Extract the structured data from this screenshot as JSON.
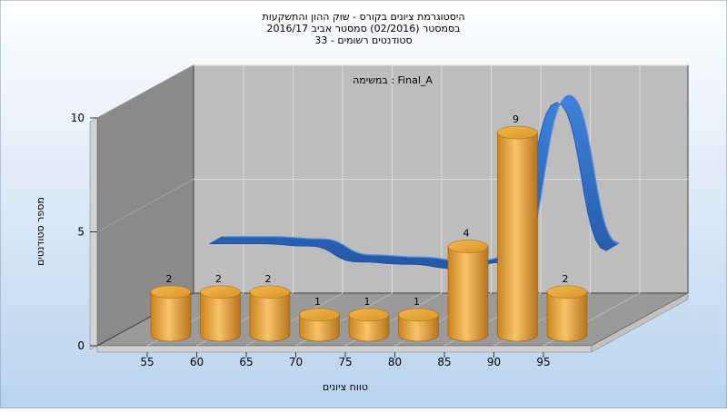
{
  "chart_data": {
    "type": "bar",
    "title_lines": [
      "היסטוגרמת ציונים בקורס - שוק ההון והתשקעות",
      "בסמסטר  (02/2016)  סמסטר אביב 2016/17",
      "סטודנטים רשומים - 33"
    ],
    "task_label": "במשימה : Final_A",
    "xlabel": "טווח ציונים",
    "ylabel": "מספר סטודנטים",
    "x_ticks": [
      "55",
      "60",
      "65",
      "70",
      "75",
      "80",
      "85",
      "90",
      "95"
    ],
    "y_ticks": [
      "0",
      "5",
      "10"
    ],
    "ylim": [
      0,
      10
    ],
    "bins": [
      {
        "x": 55,
        "value": 2
      },
      {
        "x": 60,
        "value": 2
      },
      {
        "x": 65,
        "value": 2
      },
      {
        "x": 70,
        "value": 1
      },
      {
        "x": 75,
        "value": 1
      },
      {
        "x": 80,
        "value": 1
      },
      {
        "x": 85,
        "value": 4
      },
      {
        "x": 90,
        "value": 9
      },
      {
        "x": 95,
        "value": 2
      }
    ],
    "trend_series": {
      "x": [
        56,
        61,
        66,
        71,
        76,
        81,
        86,
        91,
        96
      ],
      "values": [
        3.6,
        3.6,
        3.5,
        2.8,
        2.7,
        2.5,
        2.8,
        9.8,
        3.3
      ]
    },
    "grid": true,
    "colors": {
      "bar": "#e0a030",
      "trend": "#2f6cc4",
      "wall": "#bdbdbd",
      "side_wall": "#8a8a8a",
      "floor": "#9a9a9a",
      "background_top": "#ffffff",
      "background_bottom": "#b9d3ee"
    }
  }
}
